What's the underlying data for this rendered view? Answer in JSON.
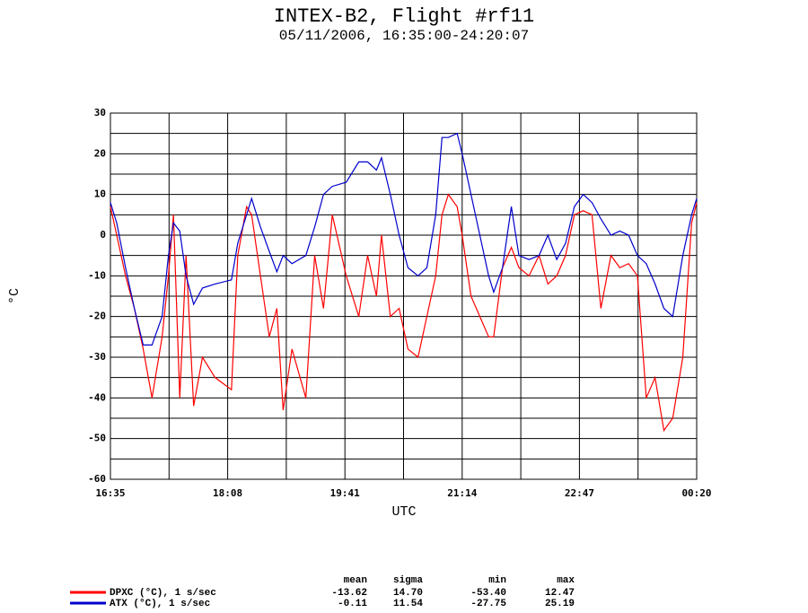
{
  "chart_data": {
    "type": "line",
    "title": "INTEX-B2, Flight #rf11",
    "subtitle": "05/11/2006, 16:35:00-24:20:07",
    "x_label": "UTC",
    "y_label": "°C",
    "x": [
      995,
      1000,
      1007,
      1014,
      1021,
      1028,
      1036,
      1041,
      1045,
      1050,
      1055,
      1061,
      1068,
      1078,
      1091,
      1096,
      1103,
      1107,
      1114,
      1121,
      1127,
      1132,
      1139,
      1150,
      1157,
      1164,
      1171,
      1182,
      1192,
      1199,
      1206,
      1210,
      1217,
      1224,
      1231,
      1239,
      1246,
      1253,
      1258,
      1263,
      1270,
      1274,
      1281,
      1288,
      1295,
      1299,
      1306,
      1313,
      1319,
      1327,
      1335,
      1342,
      1349,
      1356,
      1363,
      1370,
      1377,
      1384,
      1392,
      1399,
      1406,
      1413,
      1420,
      1427,
      1434,
      1441,
      1449,
      1456,
      1460
    ],
    "xlim": [
      995,
      1460
    ],
    "xticks": [
      {
        "value": 995,
        "label": "16:35"
      },
      {
        "value": 1088,
        "label": "18:08"
      },
      {
        "value": 1181,
        "label": "19:41"
      },
      {
        "value": 1274,
        "label": "21:14"
      },
      {
        "value": 1367,
        "label": "22:47"
      },
      {
        "value": 1460,
        "label": "00:20"
      }
    ],
    "ylim": [
      -60,
      30
    ],
    "yticks": [
      -60,
      -50,
      -40,
      -30,
      -20,
      -10,
      0,
      10,
      20,
      30
    ],
    "grid": true,
    "stats_columns": [
      "mean",
      "sigma",
      "min",
      "max"
    ],
    "series": [
      {
        "name": "DPXC (°C), 1 s/sec",
        "color": "#ff0000",
        "values": [
          7,
          0,
          -10,
          -18,
          -28,
          -40,
          -25,
          -10,
          5,
          -40,
          -5,
          -42,
          -30,
          -35,
          -38,
          -5,
          7,
          5,
          -10,
          -25,
          -18,
          -43,
          -28,
          -40,
          -5,
          -18,
          5,
          -10,
          -20,
          -5,
          -15,
          0,
          -20,
          -18,
          -28,
          -30,
          -20,
          -10,
          5,
          10,
          7,
          0,
          -15,
          -20,
          -25,
          -25,
          -8,
          -3,
          -8,
          -10,
          -5,
          -12,
          -10,
          -5,
          5,
          6,
          5,
          -18,
          -5,
          -8,
          -7,
          -10,
          -40,
          -35,
          -48,
          -45,
          -30,
          3,
          8
        ],
        "stats": [
          "-13.62",
          "14.70",
          "-53.40",
          "12.47"
        ]
      },
      {
        "name": "ATX (°C), 1 s/sec",
        "color": "#0000cc",
        "values": [
          8,
          3,
          -8,
          -18,
          -27,
          -27,
          -20,
          -5,
          3,
          1,
          -10,
          -17,
          -13,
          -12,
          -11,
          -2,
          5,
          9,
          2,
          -4,
          -9,
          -5,
          -7,
          -5,
          2,
          10,
          12,
          13,
          18,
          18,
          16,
          19,
          10,
          0,
          -8,
          -10,
          -8,
          5,
          24,
          24,
          25,
          20,
          10,
          0,
          -10,
          -14,
          -8,
          7,
          -5,
          -6,
          -5,
          0,
          -6,
          -2,
          7,
          10,
          8,
          4,
          0,
          1,
          0,
          -5,
          -7,
          -12,
          -18,
          -20,
          -5,
          5,
          9
        ],
        "stats": [
          "-0.11",
          "11.54",
          "-27.75",
          "25.19"
        ]
      }
    ]
  }
}
